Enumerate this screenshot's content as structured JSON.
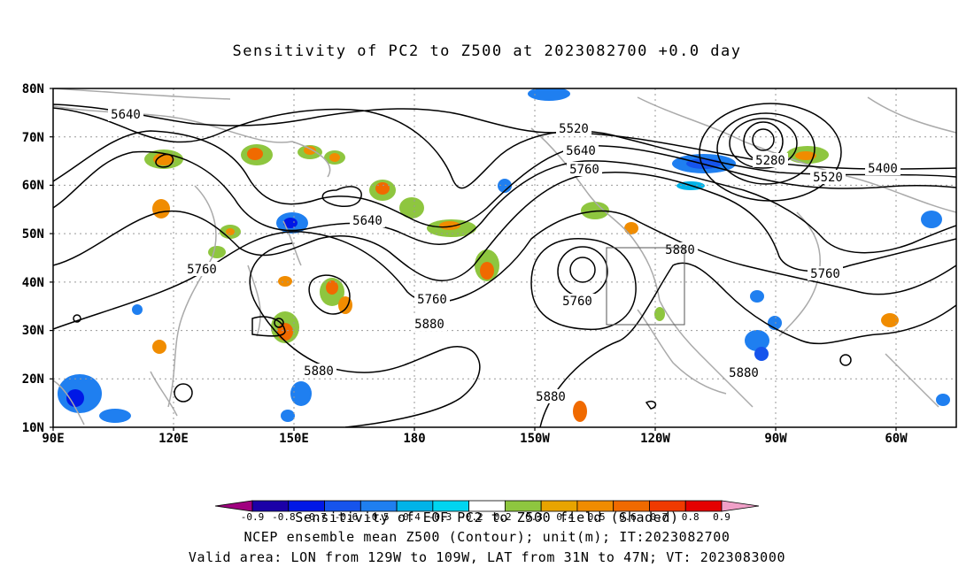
{
  "title": "Sensitivity of PC2 to Z500 at 2023082700 +0.0 day",
  "axes": {
    "lat_labels": [
      "80N",
      "70N",
      "60N",
      "50N",
      "40N",
      "30N",
      "20N",
      "10N"
    ],
    "lon_labels": [
      "90E",
      "120E",
      "150E",
      "180",
      "150W",
      "120W",
      "90W",
      "60W"
    ],
    "lon_range": [
      "90E",
      "45W"
    ],
    "lat_range": [
      "10N",
      "80N"
    ],
    "grid": "dotted"
  },
  "contours": {
    "unit": "m",
    "labels": [
      "5640",
      "5520",
      "5640",
      "5760",
      "5280",
      "5400",
      "5520",
      "5640",
      "5760",
      "5760",
      "5880",
      "5760",
      "5880",
      "5760",
      "5880",
      "5880",
      "5880"
    ]
  },
  "valid_box": {
    "lon": [
      "129W",
      "109W"
    ],
    "lat": [
      "31N",
      "47N"
    ]
  },
  "colorbar": {
    "ticks": [
      "-0.9",
      "-0.8",
      "-0.7",
      "-0.6",
      "-0.5",
      "-0.4",
      "-0.3",
      "-0.2",
      "0.2",
      "0.3",
      "0.4",
      "0.5",
      "0.6",
      "0.7",
      "0.8",
      "0.9"
    ],
    "colors": [
      "#a0007f",
      "#1b00a8",
      "#0018e6",
      "#1654ec",
      "#1f7ff0",
      "#00b3e8",
      "#00d5f0",
      "#ffffff",
      "#8ec63f",
      "#e8a400",
      "#f08c00",
      "#f06a00",
      "#f03a00",
      "#e40000",
      "#f0a0c8"
    ]
  },
  "captions": {
    "legend_label": "Sensitivity of EOF PC2 to Z500 field (Shaded)",
    "line2": "NCEP ensemble mean Z500 (Contour); unit(m); IT:2023082700",
    "line3": "Valid area: LON from 129W to 109W, LAT from 31N to 47N; VT: 2023083000"
  }
}
